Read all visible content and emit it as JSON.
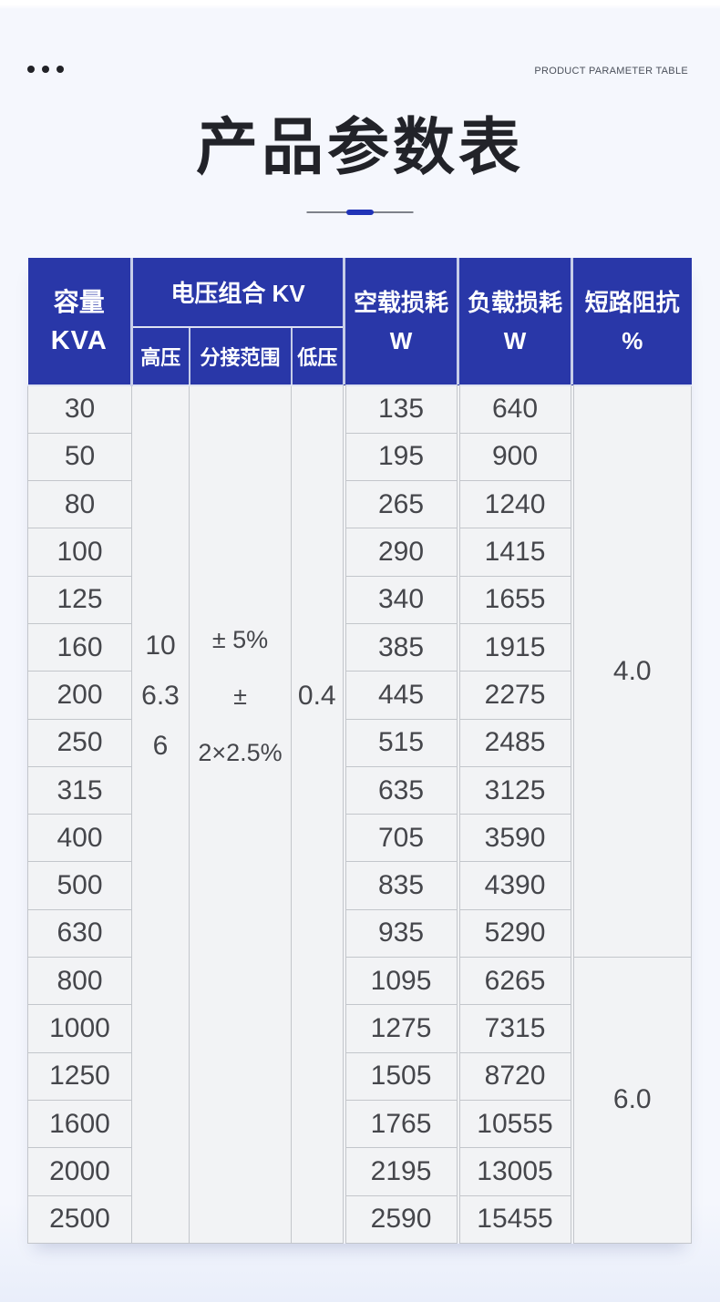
{
  "page": {
    "kicker": "PRODUCT PARAMETER TABLE",
    "title": "产品参数表"
  },
  "colors": {
    "header_blue": "#2937a8",
    "accent_blue": "#2134b8",
    "page_background": "#f5f7fd",
    "cell_background": "#f2f3f5"
  },
  "table": {
    "headers": {
      "capacity": {
        "l1": "容量",
        "l2": "KVA"
      },
      "voltage_group": "电压组合 KV",
      "high_voltage": "高压",
      "tap_range": "分接范围",
      "low_voltage": "低压",
      "no_load_loss": {
        "l1": "空载损耗",
        "l2": "W"
      },
      "load_loss": {
        "l1": "负载损耗",
        "l2": "W"
      },
      "impedance": {
        "l1": "短路阻抗",
        "l2": "%"
      }
    },
    "spans": {
      "high_voltage_values": [
        "10",
        "6.3",
        "6"
      ],
      "tap_range_values": [
        "± 5%",
        "± 2×2.5%"
      ],
      "low_voltage_value": "0.4",
      "impedance_groups": [
        {
          "value": "4.0",
          "rows": 12
        },
        {
          "value": "6.0",
          "rows": 6
        }
      ]
    },
    "rows": [
      {
        "kva": "30",
        "no_load": "135",
        "load": "640"
      },
      {
        "kva": "50",
        "no_load": "195",
        "load": "900"
      },
      {
        "kva": "80",
        "no_load": "265",
        "load": "1240"
      },
      {
        "kva": "100",
        "no_load": "290",
        "load": "1415"
      },
      {
        "kva": "125",
        "no_load": "340",
        "load": "1655"
      },
      {
        "kva": "160",
        "no_load": "385",
        "load": "1915"
      },
      {
        "kva": "200",
        "no_load": "445",
        "load": "2275"
      },
      {
        "kva": "250",
        "no_load": "515",
        "load": "2485"
      },
      {
        "kva": "315",
        "no_load": "635",
        "load": "3125"
      },
      {
        "kva": "400",
        "no_load": "705",
        "load": "3590"
      },
      {
        "kva": "500",
        "no_load": "835",
        "load": "4390"
      },
      {
        "kva": "630",
        "no_load": "935",
        "load": "5290"
      },
      {
        "kva": "800",
        "no_load": "1095",
        "load": "6265"
      },
      {
        "kva": "1000",
        "no_load": "1275",
        "load": "7315"
      },
      {
        "kva": "1250",
        "no_load": "1505",
        "load": "8720"
      },
      {
        "kva": "1600",
        "no_load": "1765",
        "load": "10555"
      },
      {
        "kva": "2000",
        "no_load": "2195",
        "load": "13005"
      },
      {
        "kva": "2500",
        "no_load": "2590",
        "load": "15455"
      }
    ]
  }
}
